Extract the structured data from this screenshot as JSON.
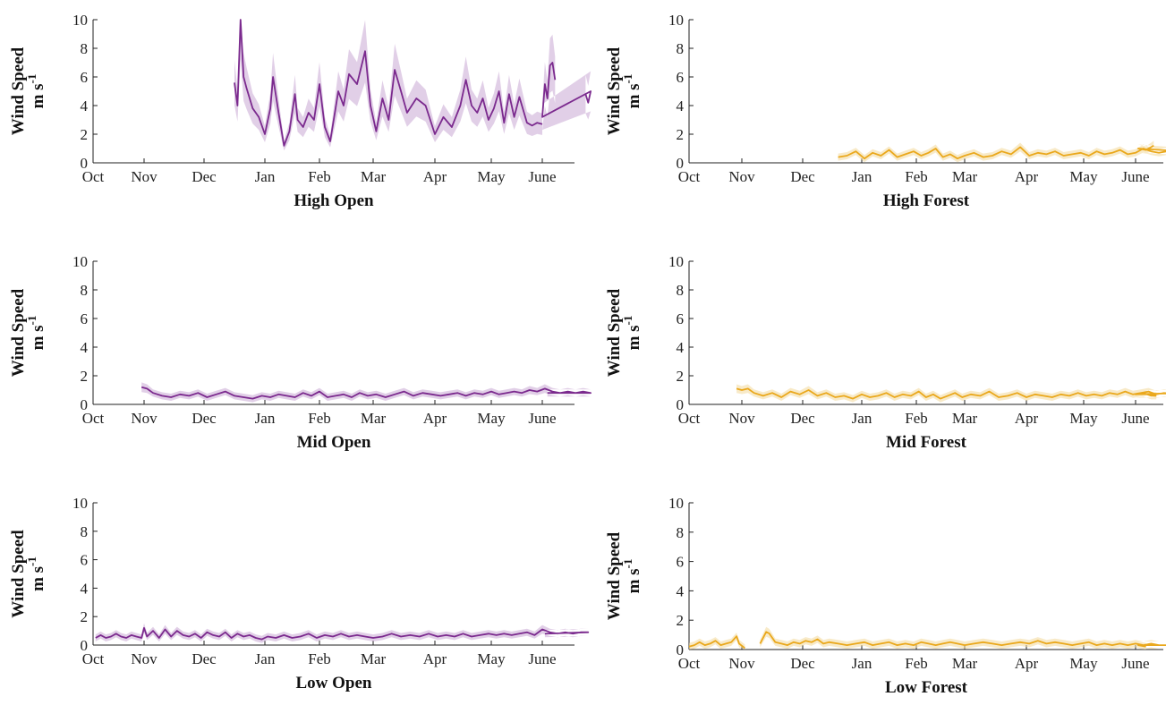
{
  "colors": {
    "open": "#7b2a8e",
    "open_band": "#c9a8d3",
    "forest": "#eaa81c",
    "forest_band": "#f3d99a",
    "axis": "#222222"
  },
  "chart_data": [
    {
      "type": "line",
      "title": "High Open",
      "ylabel": "Wind Speed",
      "yunit_base": "m s",
      "yunit_exp": "-1",
      "ylim": [
        0,
        10
      ],
      "yticks": [
        0,
        2,
        4,
        6,
        8,
        10
      ],
      "xticklabels": [
        "Oct",
        "Nov",
        "Dec",
        "Jan",
        "Feb",
        "Mar",
        "Apr",
        "May",
        "June"
      ],
      "grid": false,
      "color_key": "open",
      "series": [
        {
          "x": [
            2.5,
            2.55,
            2.6,
            2.65,
            2.7,
            2.8,
            2.9,
            3.0,
            3.1,
            3.15,
            3.25,
            3.35,
            3.45,
            3.55,
            3.6,
            3.7,
            3.8,
            3.9,
            4.0,
            4.1,
            4.2,
            4.3,
            4.35,
            4.45,
            4.55,
            4.7,
            4.85,
            4.95,
            5.05,
            5.15,
            5.25,
            5.35,
            5.45,
            5.55,
            5.7,
            5.85,
            6.0,
            6.15,
            6.3,
            6.45,
            6.55,
            6.65,
            6.75,
            6.85,
            6.95,
            7.05,
            7.15,
            7.25,
            7.35,
            7.45,
            7.55,
            7.7,
            7.8,
            7.9,
            8.0
          ],
          "values": [
            5.6,
            4.0,
            10.0,
            6.0,
            5.2,
            3.8,
            3.2,
            2.0,
            3.8,
            6.0,
            3.5,
            1.2,
            2.2,
            4.8,
            3.0,
            2.5,
            3.5,
            3.0,
            5.5,
            2.5,
            1.5,
            3.8,
            5.0,
            4.0,
            6.2,
            5.5,
            7.8,
            4.0,
            2.2,
            4.5,
            3.0,
            6.5,
            5.0,
            3.5,
            4.5,
            4.0,
            2.0,
            3.2,
            2.5,
            4.0,
            5.8,
            4.0,
            3.5,
            4.5,
            3.0,
            3.8,
            5.0,
            2.8,
            4.8,
            3.2,
            4.6,
            2.8,
            2.6,
            2.8,
            2.7
          ]
        },
        {
          "x": [
            8.85,
            8.9,
            8.95,
            9.0,
            9.05,
            9.1,
            9.15,
            9.2,
            9.25
          ],
          "values": [
            4.8,
            4.2,
            5.0,
            3.2,
            5.5,
            4.5,
            6.8,
            7.0,
            5.8
          ]
        }
      ]
    },
    {
      "type": "line",
      "title": "High Forest",
      "ylabel": "Wind Speed",
      "yunit_base": "m s",
      "yunit_exp": "-1",
      "ylim": [
        0,
        10
      ],
      "yticks": [
        0,
        2,
        4,
        6,
        8,
        10
      ],
      "xticklabels": [
        "Oct",
        "Nov",
        "Dec",
        "Jan",
        "Feb",
        "Mar",
        "Apr",
        "May",
        "June"
      ],
      "grid": false,
      "color_key": "forest",
      "series": [
        {
          "x": [
            2.6,
            2.75,
            2.9,
            3.05,
            3.2,
            3.35,
            3.5,
            3.65,
            3.8,
            3.95,
            4.1,
            4.25,
            4.4,
            4.55,
            4.7,
            4.85,
            5.0,
            5.15,
            5.3,
            5.45,
            5.6,
            5.75,
            5.9,
            6.05,
            6.2,
            6.35,
            6.5,
            6.65,
            6.8,
            6.95,
            7.1,
            7.25,
            7.4,
            7.55,
            7.7,
            7.85,
            8.0,
            8.15,
            8.3,
            8.45,
            8.6,
            8.75,
            8.9,
            9.05,
            9.2,
            9.35
          ],
          "values": [
            0.4,
            0.5,
            0.8,
            0.3,
            0.7,
            0.5,
            0.9,
            0.4,
            0.6,
            0.8,
            0.5,
            0.7,
            1.0,
            0.4,
            0.6,
            0.3,
            0.5,
            0.7,
            0.4,
            0.5,
            0.8,
            0.6,
            1.1,
            0.5,
            0.7,
            0.6,
            0.8,
            0.5,
            0.6,
            0.7,
            0.5,
            0.8,
            0.6,
            0.7,
            0.9,
            0.6,
            0.7,
            1.0,
            0.8,
            0.7,
            0.8,
            0.9,
            0.8,
            1.0,
            0.9,
            1.2
          ]
        }
      ]
    },
    {
      "type": "line",
      "title": "Mid Open",
      "ylabel": "Wind Speed",
      "yunit_base": "m s",
      "yunit_exp": "-1",
      "ylim": [
        0,
        10
      ],
      "yticks": [
        0,
        2,
        4,
        6,
        8,
        10
      ],
      "xticklabels": [
        "Oct",
        "Nov",
        "Dec",
        "Jan",
        "Feb",
        "Mar",
        "Apr",
        "May",
        "June"
      ],
      "grid": false,
      "color_key": "open",
      "series": [
        {
          "x": [
            0.95,
            1.05,
            1.15,
            1.3,
            1.45,
            1.6,
            1.75,
            1.9,
            2.05,
            2.2,
            2.35,
            2.5,
            2.65,
            2.8,
            2.95,
            3.1,
            3.25,
            3.4,
            3.55,
            3.7,
            3.85,
            4.0,
            4.15,
            4.3,
            4.45,
            4.6,
            4.75,
            4.9,
            5.05,
            5.2,
            5.35,
            5.5,
            5.65,
            5.8,
            5.95,
            6.1,
            6.25,
            6.4,
            6.55,
            6.7,
            6.85,
            7.0,
            7.15,
            7.3,
            7.45,
            7.6,
            7.75,
            7.9,
            8.05,
            8.2,
            8.35,
            8.5,
            8.65,
            8.8,
            8.95,
            9.1
          ],
          "values": [
            1.2,
            1.1,
            0.8,
            0.6,
            0.5,
            0.7,
            0.6,
            0.8,
            0.5,
            0.7,
            0.9,
            0.6,
            0.5,
            0.4,
            0.6,
            0.5,
            0.7,
            0.6,
            0.5,
            0.8,
            0.6,
            0.9,
            0.5,
            0.6,
            0.7,
            0.5,
            0.8,
            0.6,
            0.7,
            0.5,
            0.7,
            0.9,
            0.6,
            0.8,
            0.7,
            0.6,
            0.7,
            0.8,
            0.6,
            0.8,
            0.7,
            0.9,
            0.7,
            0.8,
            0.9,
            0.8,
            1.0,
            0.9,
            1.1,
            0.9,
            0.8,
            0.9,
            0.8,
            0.9,
            0.8,
            0.8
          ]
        }
      ]
    },
    {
      "type": "line",
      "title": "Mid Forest",
      "ylabel": "Wind Speed",
      "yunit_base": "m s",
      "yunit_exp": "-1",
      "ylim": [
        0,
        10
      ],
      "yticks": [
        0,
        2,
        4,
        6,
        8,
        10
      ],
      "xticklabels": [
        "Oct",
        "Nov",
        "Dec",
        "Jan",
        "Feb",
        "Mar",
        "Apr",
        "May",
        "June"
      ],
      "grid": false,
      "color_key": "forest",
      "series": [
        {
          "x": [
            0.9,
            1.0,
            1.1,
            1.2,
            1.35,
            1.5,
            1.65,
            1.8,
            1.95,
            2.1,
            2.25,
            2.4,
            2.55,
            2.7,
            2.85,
            3.0,
            3.15,
            3.3,
            3.45,
            3.6,
            3.75,
            3.9,
            4.05,
            4.2,
            4.35,
            4.5,
            4.65,
            4.8,
            4.95,
            5.1,
            5.25,
            5.4,
            5.55,
            5.7,
            5.85,
            6.0,
            6.15,
            6.3,
            6.45,
            6.6,
            6.75,
            6.9,
            7.05,
            7.2,
            7.35,
            7.5,
            7.65,
            7.8,
            7.95,
            8.1,
            8.25,
            8.4,
            8.55,
            8.7,
            8.85,
            9.0,
            9.15,
            9.3,
            9.4
          ],
          "values": [
            1.1,
            1.0,
            1.1,
            0.8,
            0.6,
            0.8,
            0.5,
            0.9,
            0.7,
            1.0,
            0.6,
            0.8,
            0.5,
            0.6,
            0.4,
            0.7,
            0.5,
            0.6,
            0.8,
            0.5,
            0.7,
            0.6,
            0.9,
            0.5,
            0.7,
            0.4,
            0.6,
            0.8,
            0.5,
            0.7,
            0.6,
            0.9,
            0.5,
            0.6,
            0.8,
            0.5,
            0.7,
            0.6,
            0.5,
            0.7,
            0.6,
            0.8,
            0.6,
            0.7,
            0.6,
            0.8,
            0.7,
            0.9,
            0.7,
            0.8,
            0.9,
            0.7,
            0.8,
            0.7,
            0.8,
            0.7,
            0.8,
            0.6,
            0.6
          ]
        }
      ]
    },
    {
      "type": "line",
      "title": "Low Open",
      "ylabel": "Wind Speed",
      "yunit_base": "m s",
      "yunit_exp": "-1",
      "ylim": [
        0,
        10
      ],
      "yticks": [
        0,
        2,
        4,
        6,
        8,
        10
      ],
      "xticklabels": [
        "Oct",
        "Nov",
        "Dec",
        "Jan",
        "Feb",
        "Mar",
        "Apr",
        "May",
        "June"
      ],
      "grid": false,
      "color_key": "open",
      "series": [
        {
          "x": [
            0.05,
            0.15,
            0.25,
            0.35,
            0.45,
            0.55,
            0.65,
            0.75,
            0.85,
            0.95,
            1.0,
            1.05,
            1.15,
            1.25,
            1.35,
            1.45,
            1.55,
            1.65,
            1.75,
            1.85,
            1.95,
            2.05,
            2.15,
            2.25,
            2.35,
            2.45,
            2.55,
            2.65,
            2.75,
            2.85,
            2.95,
            3.05,
            3.2,
            3.35,
            3.5,
            3.65,
            3.8,
            3.95,
            4.1,
            4.25,
            4.4,
            4.55,
            4.7,
            4.85,
            5.0,
            5.15,
            5.3,
            5.45,
            5.6,
            5.75,
            5.9,
            6.05,
            6.2,
            6.35,
            6.5,
            6.65,
            6.8,
            6.95,
            7.1,
            7.25,
            7.4,
            7.55,
            7.7,
            7.85,
            8.0,
            8.15,
            8.3,
            8.45,
            8.6,
            8.75,
            8.9,
            9.05
          ],
          "values": [
            0.5,
            0.7,
            0.5,
            0.6,
            0.8,
            0.6,
            0.5,
            0.7,
            0.6,
            0.5,
            1.2,
            0.6,
            1.0,
            0.5,
            1.1,
            0.6,
            1.0,
            0.7,
            0.6,
            0.8,
            0.5,
            0.9,
            0.7,
            0.6,
            0.9,
            0.5,
            0.8,
            0.6,
            0.7,
            0.5,
            0.4,
            0.6,
            0.5,
            0.7,
            0.5,
            0.6,
            0.8,
            0.5,
            0.7,
            0.6,
            0.8,
            0.6,
            0.7,
            0.6,
            0.5,
            0.6,
            0.8,
            0.6,
            0.7,
            0.6,
            0.8,
            0.6,
            0.7,
            0.6,
            0.8,
            0.6,
            0.7,
            0.8,
            0.7,
            0.8,
            0.7,
            0.8,
            0.9,
            0.7,
            1.1,
            0.9,
            0.8,
            0.9,
            0.8,
            0.9,
            0.9,
            0.8
          ]
        }
      ]
    },
    {
      "type": "line",
      "title": "Low Forest",
      "ylabel": "Wind Speed",
      "yunit_base": "m s",
      "yunit_exp": "-1",
      "ylim": [
        0,
        10
      ],
      "yticks": [
        0,
        2,
        4,
        6,
        8,
        10
      ],
      "xticklabels": [
        "Oct",
        "Nov",
        "Dec",
        "Jan",
        "Feb",
        "Mar",
        "Apr",
        "May",
        "June"
      ],
      "grid": false,
      "color_key": "forest",
      "series": [
        {
          "x": [
            0.0,
            0.1,
            0.2,
            0.3,
            0.4,
            0.5,
            0.6,
            0.7,
            0.8,
            0.9,
            0.95,
            1.05
          ],
          "values": [
            0.2,
            0.3,
            0.5,
            0.3,
            0.4,
            0.6,
            0.3,
            0.4,
            0.5,
            0.9,
            0.4,
            0.1
          ]
        },
        {
          "x": [
            1.3,
            1.4,
            1.45,
            1.55,
            1.65,
            1.75,
            1.85,
            1.95,
            2.05,
            2.15,
            2.25,
            2.35,
            2.45,
            2.6,
            2.75,
            2.9,
            3.05,
            3.2,
            3.35,
            3.5,
            3.65,
            3.8,
            3.95,
            4.1,
            4.25,
            4.4,
            4.55,
            4.7,
            4.85,
            5.0,
            5.15,
            5.3,
            5.45,
            5.6,
            5.75,
            5.9,
            6.05,
            6.2,
            6.35,
            6.5,
            6.65,
            6.8,
            6.95,
            7.1,
            7.25,
            7.4,
            7.55,
            7.7,
            7.85,
            8.0,
            8.15,
            8.3,
            8.45,
            8.6,
            8.75,
            8.9,
            9.05,
            9.2
          ],
          "values": [
            0.4,
            1.2,
            1.1,
            0.5,
            0.4,
            0.3,
            0.5,
            0.4,
            0.6,
            0.5,
            0.7,
            0.4,
            0.5,
            0.4,
            0.3,
            0.4,
            0.5,
            0.3,
            0.4,
            0.5,
            0.3,
            0.4,
            0.3,
            0.5,
            0.4,
            0.3,
            0.4,
            0.5,
            0.4,
            0.3,
            0.4,
            0.5,
            0.4,
            0.3,
            0.4,
            0.5,
            0.4,
            0.6,
            0.4,
            0.5,
            0.4,
            0.3,
            0.4,
            0.5,
            0.3,
            0.4,
            0.3,
            0.4,
            0.3,
            0.4,
            0.3,
            0.4,
            0.3,
            0.3,
            0.2,
            0.3,
            0.3,
            0.2
          ]
        }
      ]
    }
  ]
}
